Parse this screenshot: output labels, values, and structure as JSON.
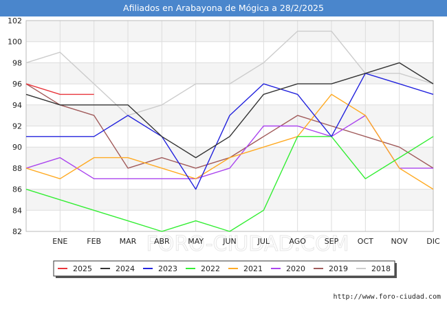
{
  "page": {
    "title": "Afiliados en Arabayona de Mógica a 28/2/2025",
    "footer": "http://www.foro-ciudad.com",
    "watermark": "FORO-CIUDAD.COM"
  },
  "chart_data": {
    "type": "line",
    "title": "Afiliados en Arabayona de Mógica a 28/2/2025",
    "categories": [
      "",
      "ENE",
      "FEB",
      "MAR",
      "ABR",
      "MAY",
      "JUN",
      "JUL",
      "AGO",
      "SEP",
      "OCT",
      "NOV",
      "DIC"
    ],
    "ylim": [
      82,
      102
    ],
    "yticks": [
      82,
      84,
      86,
      88,
      90,
      92,
      94,
      96,
      98,
      100,
      102
    ],
    "grid": true,
    "legend_position": "bottom",
    "series": [
      {
        "name": "2025",
        "color": "#e8343a",
        "values": [
          96,
          95,
          95,
          null,
          null,
          null,
          null,
          null,
          null,
          null,
          null,
          null,
          null
        ]
      },
      {
        "name": "2024",
        "color": "#333333",
        "values": [
          95,
          94,
          94,
          94,
          91,
          89,
          91,
          95,
          96,
          96,
          97,
          98,
          96
        ]
      },
      {
        "name": "2023",
        "color": "#2222dd",
        "values": [
          91,
          91,
          91,
          93,
          91,
          86,
          93,
          96,
          95,
          91,
          97,
          96,
          95
        ]
      },
      {
        "name": "2022",
        "color": "#33ee33",
        "values": [
          86,
          85,
          84,
          83,
          82,
          83,
          82,
          84,
          91,
          91,
          87,
          89,
          91
        ]
      },
      {
        "name": "2021",
        "color": "#ffaa22",
        "values": [
          88,
          87,
          89,
          89,
          88,
          87,
          89,
          90,
          91,
          95,
          93,
          88,
          86
        ]
      },
      {
        "name": "2020",
        "color": "#aa44ee",
        "values": [
          88,
          89,
          87,
          87,
          87,
          87,
          88,
          92,
          92,
          91,
          93,
          88,
          88
        ]
      },
      {
        "name": "2019",
        "color": "#a05a5a",
        "values": [
          96,
          94,
          93,
          88,
          89,
          88,
          89,
          91,
          93,
          92,
          91,
          90,
          88
        ]
      },
      {
        "name": "2018",
        "color": "#cccccc",
        "values": [
          98,
          99,
          96,
          93,
          94,
          96,
          96,
          98,
          101,
          101,
          97,
          97,
          96
        ]
      }
    ]
  }
}
